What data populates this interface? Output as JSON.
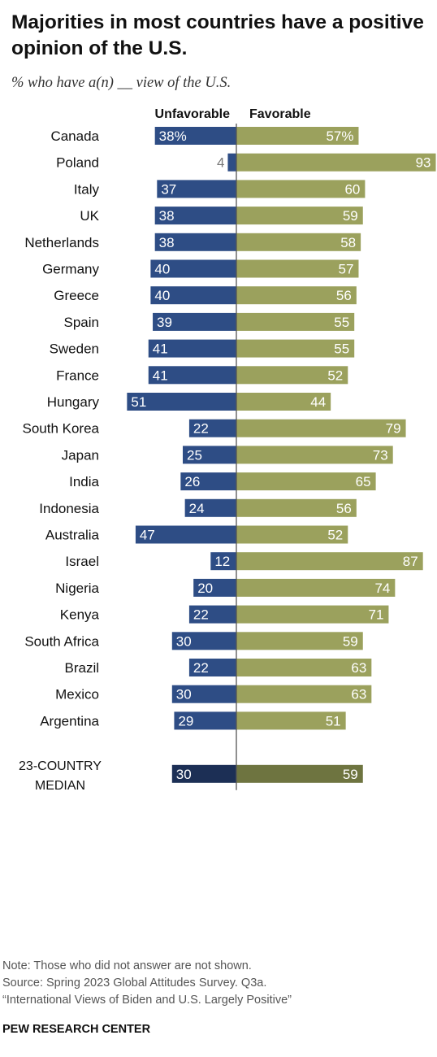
{
  "header": {
    "title": "Majorities in most countries have a positive opinion of the U.S.",
    "subtitle": "% who have a(n) __ view of the U.S."
  },
  "chart_data": {
    "type": "bar",
    "orientation": "diverging-horizontal",
    "title": "Majorities in most countries have a positive opinion of the U.S.",
    "subtitle": "% who have a(n) __ view of the U.S.",
    "column_headers": [
      "Unfavorable",
      "Favorable"
    ],
    "groups": [
      [
        {
          "country": "Canada",
          "unfavorable": 38,
          "favorable": 57,
          "unf_label": "38%",
          "fav_label": "57%"
        }
      ],
      [
        {
          "country": "Poland",
          "unfavorable": 4,
          "favorable": 93,
          "unf_label": "4",
          "fav_label": "93"
        },
        {
          "country": "Italy",
          "unfavorable": 37,
          "favorable": 60,
          "unf_label": "37",
          "fav_label": "60"
        },
        {
          "country": "UK",
          "unfavorable": 38,
          "favorable": 59,
          "unf_label": "38",
          "fav_label": "59"
        },
        {
          "country": "Netherlands",
          "unfavorable": 38,
          "favorable": 58,
          "unf_label": "38",
          "fav_label": "58"
        },
        {
          "country": "Germany",
          "unfavorable": 40,
          "favorable": 57,
          "unf_label": "40",
          "fav_label": "57"
        },
        {
          "country": "Greece",
          "unfavorable": 40,
          "favorable": 56,
          "unf_label": "40",
          "fav_label": "56"
        },
        {
          "country": "Spain",
          "unfavorable": 39,
          "favorable": 55,
          "unf_label": "39",
          "fav_label": "55"
        },
        {
          "country": "Sweden",
          "unfavorable": 41,
          "favorable": 55,
          "unf_label": "41",
          "fav_label": "55"
        },
        {
          "country": "France",
          "unfavorable": 41,
          "favorable": 52,
          "unf_label": "41",
          "fav_label": "52"
        },
        {
          "country": "Hungary",
          "unfavorable": 51,
          "favorable": 44,
          "unf_label": "51",
          "fav_label": "44"
        }
      ],
      [
        {
          "country": "South Korea",
          "unfavorable": 22,
          "favorable": 79,
          "unf_label": "22",
          "fav_label": "79"
        },
        {
          "country": "Japan",
          "unfavorable": 25,
          "favorable": 73,
          "unf_label": "25",
          "fav_label": "73"
        },
        {
          "country": "India",
          "unfavorable": 26,
          "favorable": 65,
          "unf_label": "26",
          "fav_label": "65"
        },
        {
          "country": "Indonesia",
          "unfavorable": 24,
          "favorable": 56,
          "unf_label": "24",
          "fav_label": "56"
        },
        {
          "country": "Australia",
          "unfavorable": 47,
          "favorable": 52,
          "unf_label": "47",
          "fav_label": "52"
        }
      ],
      [
        {
          "country": "Israel",
          "unfavorable": 12,
          "favorable": 87,
          "unf_label": "12",
          "fav_label": "87"
        }
      ],
      [
        {
          "country": "Nigeria",
          "unfavorable": 20,
          "favorable": 74,
          "unf_label": "20",
          "fav_label": "74"
        },
        {
          "country": "Kenya",
          "unfavorable": 22,
          "favorable": 71,
          "unf_label": "22",
          "fav_label": "71"
        },
        {
          "country": "South Africa",
          "unfavorable": 30,
          "favorable": 59,
          "unf_label": "30",
          "fav_label": "59"
        }
      ],
      [
        {
          "country": "Brazil",
          "unfavorable": 22,
          "favorable": 63,
          "unf_label": "22",
          "fav_label": "63"
        },
        {
          "country": "Mexico",
          "unfavorable": 30,
          "favorable": 63,
          "unf_label": "30",
          "fav_label": "63"
        },
        {
          "country": "Argentina",
          "unfavorable": 29,
          "favorable": 51,
          "unf_label": "29",
          "fav_label": "51"
        }
      ]
    ],
    "median": {
      "label_lines": [
        "23-COUNTRY",
        "MEDIAN"
      ],
      "unfavorable": 30,
      "favorable": 59,
      "unf_label": "30",
      "fav_label": "59"
    },
    "colors": {
      "unfavorable": "#2e4d85",
      "favorable": "#9ba15d",
      "median_unfavorable": "#1c2f55",
      "median_favorable": "#6e7440",
      "axis": "#555555"
    },
    "grid": false
  },
  "footer": {
    "note": "Note: Those who did not answer are not shown.",
    "source": "Source: Spring 2023 Global Attitudes Survey. Q3a.",
    "report": "“International Views of Biden and U.S. Largely Positive”",
    "brand": "PEW RESEARCH CENTER"
  }
}
